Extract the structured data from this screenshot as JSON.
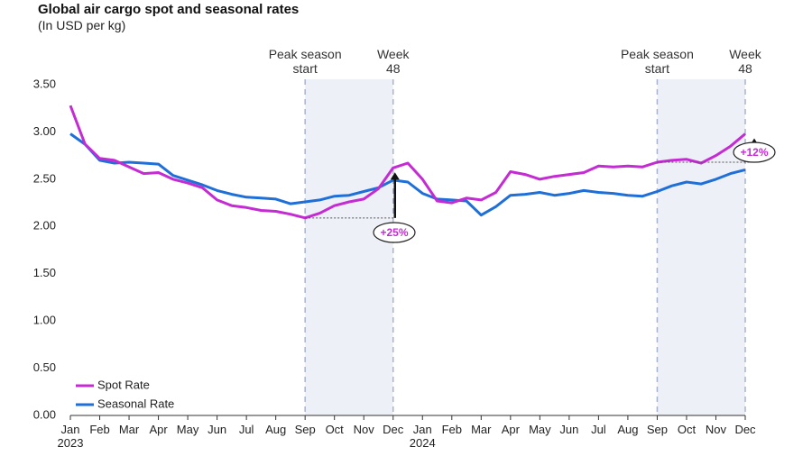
{
  "chart_data": {
    "type": "line",
    "title": "Global air cargo spot and seasonal rates",
    "subtitle": "(In USD per kg)",
    "categories": [
      "Jan 2023",
      null,
      "Feb",
      null,
      "Mar",
      null,
      "Apr",
      null,
      "May",
      null,
      "Jun",
      null,
      "Jul",
      null,
      "Aug",
      null,
      "Sep",
      null,
      "Oct",
      null,
      "Nov",
      null,
      "Dec",
      null,
      "Jan 2024",
      null,
      "Feb",
      null,
      "Mar",
      null,
      "Apr",
      null,
      "May",
      null,
      "Jun",
      null,
      "Jul",
      null,
      "Aug",
      null,
      "Sep",
      null,
      "Oct",
      null,
      "Nov",
      null,
      "Dec"
    ],
    "series": [
      {
        "name": "Spot Rate",
        "color": "#c42bd3",
        "values": [
          3.28,
          2.87,
          2.72,
          2.7,
          2.63,
          2.56,
          2.57,
          2.5,
          2.46,
          2.41,
          2.28,
          2.22,
          2.2,
          2.17,
          2.16,
          2.13,
          2.09,
          2.14,
          2.22,
          2.26,
          2.29,
          2.4,
          2.62,
          2.67,
          2.5,
          2.27,
          2.25,
          2.3,
          2.28,
          2.36,
          2.58,
          2.55,
          2.5,
          2.53,
          2.55,
          2.57,
          2.64,
          2.63,
          2.64,
          2.63,
          2.68,
          2.7,
          2.71,
          2.67,
          2.75,
          2.85,
          2.98
        ]
      },
      {
        "name": "Seasonal Rate",
        "color": "#1f6fd8",
        "values": [
          2.98,
          2.87,
          2.7,
          2.67,
          2.68,
          2.67,
          2.66,
          2.54,
          2.49,
          2.44,
          2.38,
          2.34,
          2.31,
          2.3,
          2.29,
          2.24,
          2.26,
          2.28,
          2.32,
          2.33,
          2.37,
          2.41,
          2.49,
          2.47,
          2.35,
          2.29,
          2.28,
          2.27,
          2.12,
          2.21,
          2.33,
          2.34,
          2.36,
          2.33,
          2.35,
          2.38,
          2.36,
          2.35,
          2.33,
          2.32,
          2.37,
          2.43,
          2.47,
          2.45,
          2.5,
          2.56,
          2.6
        ]
      }
    ],
    "ylim": [
      0,
      3.5
    ],
    "yticks": [
      {
        "value": 0,
        "label": "0.00"
      },
      {
        "value": 0.5,
        "label": "0.50"
      },
      {
        "value": 1,
        "label": "1.00"
      },
      {
        "value": 1.5,
        "label": "1.50"
      },
      {
        "value": 2,
        "label": "2.00"
      },
      {
        "value": 2.5,
        "label": "2.50"
      },
      {
        "value": 3,
        "label": "3.00"
      },
      {
        "value": 3.5,
        "label": "3.50"
      }
    ],
    "grid": false,
    "legend": "lower left",
    "annotations": [
      {
        "start_label": "Peak season start",
        "end_label": "Week 48",
        "change_label": "+25%"
      },
      {
        "start_label": "Peak season start",
        "end_label": "Week 48",
        "change_label": "+12%"
      }
    ]
  }
}
